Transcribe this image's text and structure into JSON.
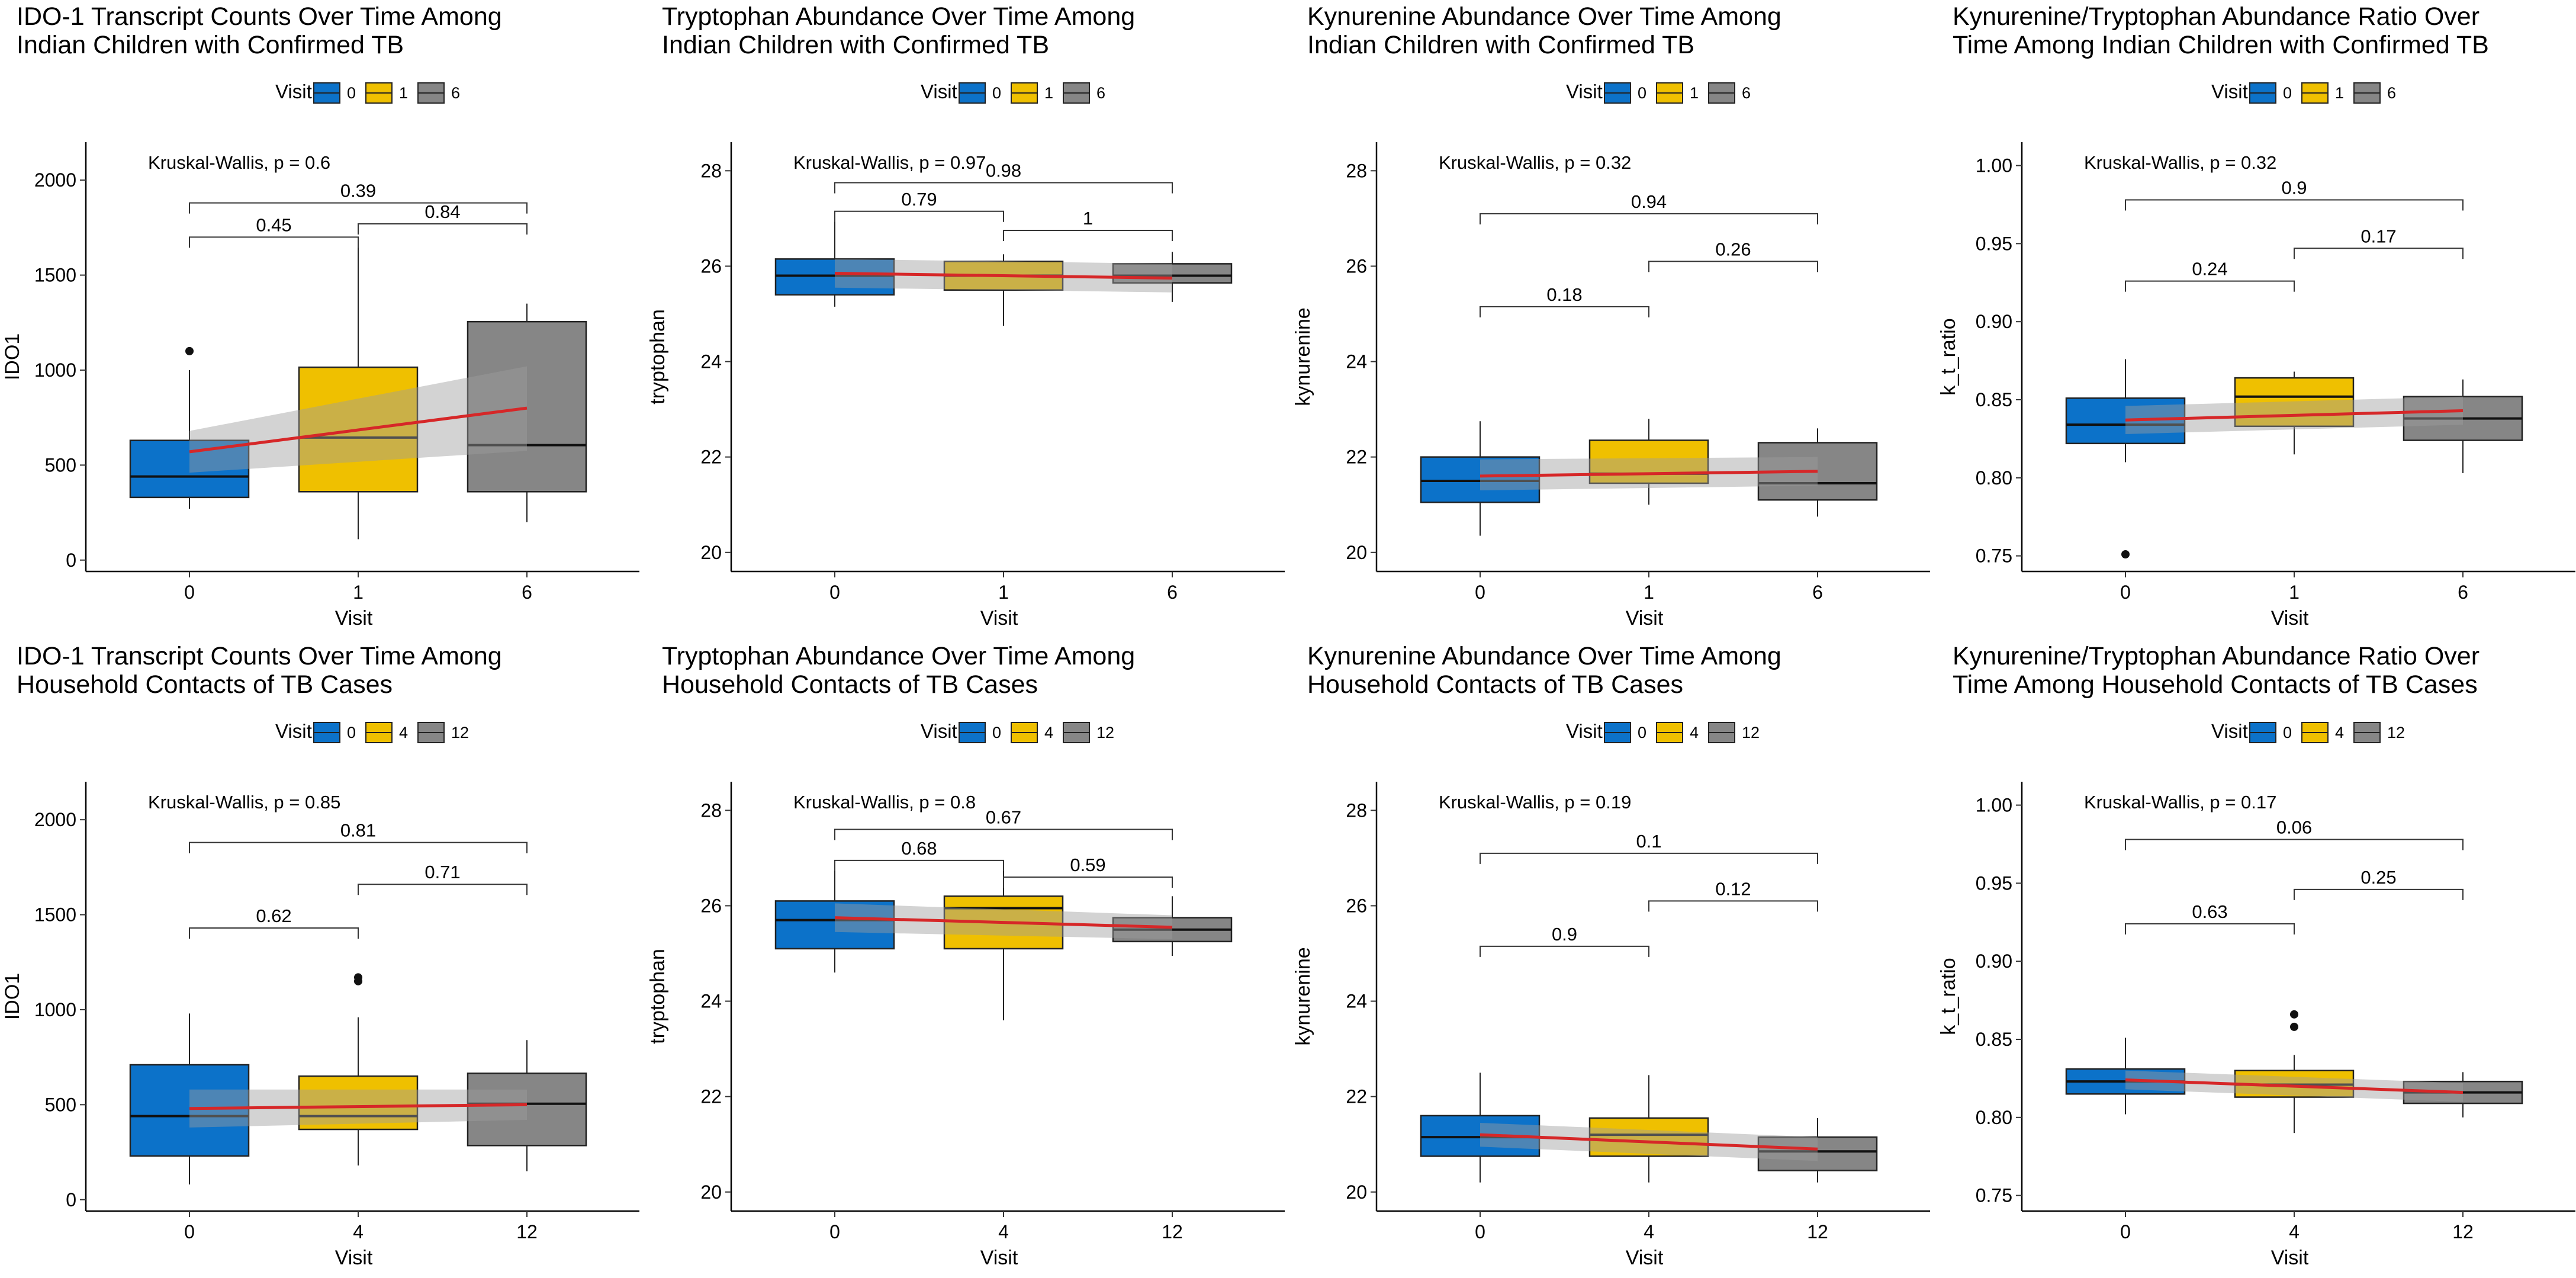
{
  "chart_data": [
    {
      "type": "box",
      "title_lines": [
        "IDO-1 Transcript Counts Over Time Among",
        "Indian Children  with Confirmed TB"
      ],
      "ylabel": "IDO1",
      "xlabel": "Visit",
      "legend_title": "Visit",
      "categories": [
        "0",
        "1",
        "6"
      ],
      "ylim": [
        -60,
        2200
      ],
      "yticks": [
        0,
        500,
        1000,
        1500,
        2000
      ],
      "boxes": [
        {
          "category": "0",
          "q1": 330,
          "median": 440,
          "q3": 630,
          "whisker_low": 270,
          "whisker_high": 1000,
          "outliers": [
            1100
          ]
        },
        {
          "category": "1",
          "q1": 360,
          "median": 645,
          "q3": 1015,
          "whisker_low": 110,
          "whisker_high": 1700,
          "outliers": []
        },
        {
          "category": "6",
          "q1": 360,
          "median": 605,
          "q3": 1255,
          "whisker_low": 200,
          "whisker_high": 1350,
          "outliers": []
        }
      ],
      "trend": {
        "start": 570,
        "end": 800,
        "band_start": [
          460,
          680
        ],
        "band_end": [
          575,
          1020
        ]
      },
      "kruskal_wallis": "Kruskal-Wallis, p = 0.6",
      "comparisons": [
        {
          "from": 0,
          "to": 1,
          "y": 1700,
          "label": "0.45"
        },
        {
          "from": 1,
          "to": 2,
          "y": 1770,
          "label": "0.84"
        },
        {
          "from": 0,
          "to": 2,
          "y": 1880,
          "label": "0.39"
        }
      ]
    },
    {
      "type": "box",
      "title_lines": [
        "Tryptophan Abundance Over Time Among",
        "Indian Children with Confirmed TB"
      ],
      "ylabel": "tryptophan",
      "xlabel": "Visit",
      "legend_title": "Visit",
      "categories": [
        "0",
        "1",
        "6"
      ],
      "ylim": [
        19.6,
        28.6
      ],
      "yticks": [
        20,
        22,
        24,
        26,
        28
      ],
      "boxes": [
        {
          "category": "0",
          "q1": 25.4,
          "median": 25.8,
          "q3": 26.15,
          "whisker_low": 25.15,
          "whisker_high": 27.1,
          "outliers": []
        },
        {
          "category": "1",
          "q1": 25.5,
          "median": 25.8,
          "q3": 26.1,
          "whisker_low": 24.75,
          "whisker_high": 26.25,
          "outliers": []
        },
        {
          "category": "6",
          "q1": 25.65,
          "median": 25.8,
          "q3": 26.05,
          "whisker_low": 25.25,
          "whisker_high": 26.3,
          "outliers": []
        }
      ],
      "trend": {
        "start": 25.85,
        "end": 25.75,
        "band_start": [
          25.55,
          26.15
        ],
        "band_end": [
          25.45,
          26.05
        ]
      },
      "kruskal_wallis": "Kruskal-Wallis, p = 0.97",
      "comparisons": [
        {
          "from": 0,
          "to": 1,
          "y": 27.15,
          "label": "0.79"
        },
        {
          "from": 1,
          "to": 2,
          "y": 26.75,
          "label": "1"
        },
        {
          "from": 0,
          "to": 2,
          "y": 27.75,
          "label": "0.98"
        }
      ]
    },
    {
      "type": "box",
      "title_lines": [
        "Kynurenine Abundance Over Time Among",
        "Indian Children  with Confirmed TB"
      ],
      "ylabel": "kynurenine",
      "xlabel": "Visit",
      "legend_title": "Visit",
      "categories": [
        "0",
        "1",
        "6"
      ],
      "ylim": [
        19.6,
        28.6
      ],
      "yticks": [
        20,
        22,
        24,
        26,
        28
      ],
      "boxes": [
        {
          "category": "0",
          "q1": 21.05,
          "median": 21.5,
          "q3": 22.0,
          "whisker_low": 20.35,
          "whisker_high": 22.75,
          "outliers": []
        },
        {
          "category": "1",
          "q1": 21.45,
          "median": 21.65,
          "q3": 22.35,
          "whisker_low": 21.0,
          "whisker_high": 22.8,
          "outliers": []
        },
        {
          "category": "6",
          "q1": 21.1,
          "median": 21.45,
          "q3": 22.3,
          "whisker_low": 20.75,
          "whisker_high": 22.6,
          "outliers": []
        }
      ],
      "trend": {
        "start": 21.6,
        "end": 21.7,
        "band_start": [
          21.3,
          21.95
        ],
        "band_end": [
          21.4,
          22.0
        ]
      },
      "kruskal_wallis": "Kruskal-Wallis, p = 0.32",
      "comparisons": [
        {
          "from": 0,
          "to": 1,
          "y": 25.15,
          "label": "0.18"
        },
        {
          "from": 1,
          "to": 2,
          "y": 26.1,
          "label": "0.26"
        },
        {
          "from": 0,
          "to": 2,
          "y": 27.1,
          "label": "0.94"
        }
      ]
    },
    {
      "type": "box",
      "title_lines": [
        "Kynurenine/Tryptophan Abundance Ratio Over",
        "Time Among Indian Children with Confirmed TB"
      ],
      "ylabel": "k_t_ratio",
      "xlabel": "Visit",
      "legend_title": "Visit",
      "categories": [
        "0",
        "1",
        "6"
      ],
      "ylim": [
        0.74,
        1.015
      ],
      "yticks": [
        0.75,
        0.8,
        0.85,
        0.9,
        0.95,
        1.0
      ],
      "ytick_labels": [
        "0.75",
        "0.80",
        "0.85",
        "0.90",
        "0.95",
        "1.00"
      ],
      "boxes": [
        {
          "category": "0",
          "q1": 0.822,
          "median": 0.834,
          "q3": 0.851,
          "whisker_low": 0.81,
          "whisker_high": 0.876,
          "outliers": [
            0.751
          ]
        },
        {
          "category": "1",
          "q1": 0.833,
          "median": 0.852,
          "q3": 0.864,
          "whisker_low": 0.815,
          "whisker_high": 0.868,
          "outliers": []
        },
        {
          "category": "6",
          "q1": 0.824,
          "median": 0.838,
          "q3": 0.852,
          "whisker_low": 0.803,
          "whisker_high": 0.863,
          "outliers": []
        }
      ],
      "trend": {
        "start": 0.837,
        "end": 0.843,
        "band_start": [
          0.828,
          0.846
        ],
        "band_end": [
          0.834,
          0.852
        ]
      },
      "kruskal_wallis": "Kruskal-Wallis, p = 0.32",
      "comparisons": [
        {
          "from": 0,
          "to": 1,
          "y": 0.926,
          "label": "0.24"
        },
        {
          "from": 1,
          "to": 2,
          "y": 0.947,
          "label": "0.17"
        },
        {
          "from": 0,
          "to": 2,
          "y": 0.978,
          "label": "0.9"
        }
      ]
    },
    {
      "type": "box",
      "title_lines": [
        "IDO-1 Transcript Counts Over Time Among",
        "Household Contacts of TB Cases"
      ],
      "ylabel": "IDO1",
      "xlabel": "Visit",
      "legend_title": "Visit",
      "categories": [
        "0",
        "4",
        "12"
      ],
      "ylim": [
        -60,
        2200
      ],
      "yticks": [
        0,
        500,
        1000,
        1500,
        2000
      ],
      "boxes": [
        {
          "category": "0",
          "q1": 230,
          "median": 440,
          "q3": 710,
          "whisker_low": 80,
          "whisker_high": 980,
          "outliers": []
        },
        {
          "category": "4",
          "q1": 370,
          "median": 440,
          "q3": 650,
          "whisker_low": 180,
          "whisker_high": 960,
          "outliers": [
            1150,
            1170
          ]
        },
        {
          "category": "12",
          "q1": 285,
          "median": 505,
          "q3": 665,
          "whisker_low": 150,
          "whisker_high": 840,
          "outliers": []
        }
      ],
      "trend": {
        "start": 480,
        "end": 500,
        "band_start": [
          380,
          580
        ],
        "band_end": [
          420,
          580
        ]
      },
      "kruskal_wallis": "Kruskal-Wallis, p = 0.85",
      "comparisons": [
        {
          "from": 0,
          "to": 1,
          "y": 1430,
          "label": "0.62"
        },
        {
          "from": 1,
          "to": 2,
          "y": 1660,
          "label": "0.71"
        },
        {
          "from": 0,
          "to": 2,
          "y": 1880,
          "label": "0.81"
        }
      ]
    },
    {
      "type": "box",
      "title_lines": [
        "Tryptophan Abundance Over Time Among",
        "Household Contacts of TB Cases"
      ],
      "ylabel": "tryptophan",
      "xlabel": "Visit",
      "legend_title": "Visit",
      "categories": [
        "0",
        "4",
        "12"
      ],
      "ylim": [
        19.6,
        28.6
      ],
      "yticks": [
        20,
        22,
        24,
        26,
        28
      ],
      "boxes": [
        {
          "category": "0",
          "q1": 25.1,
          "median": 25.7,
          "q3": 26.1,
          "whisker_low": 24.6,
          "whisker_high": 26.95,
          "outliers": []
        },
        {
          "category": "4",
          "q1": 25.1,
          "median": 25.95,
          "q3": 26.2,
          "whisker_low": 23.6,
          "whisker_high": 26.95,
          "outliers": []
        },
        {
          "category": "12",
          "q1": 25.25,
          "median": 25.5,
          "q3": 25.75,
          "whisker_low": 24.95,
          "whisker_high": 26.2,
          "outliers": []
        }
      ],
      "trend": {
        "start": 25.75,
        "end": 25.55,
        "band_start": [
          25.45,
          26.05
        ],
        "band_end": [
          25.3,
          25.8
        ]
      },
      "kruskal_wallis": "Kruskal-Wallis, p = 0.8",
      "comparisons": [
        {
          "from": 0,
          "to": 1,
          "y": 26.95,
          "label": "0.68"
        },
        {
          "from": 1,
          "to": 2,
          "y": 26.6,
          "label": "0.59"
        },
        {
          "from": 0,
          "to": 2,
          "y": 27.6,
          "label": "0.67"
        }
      ]
    },
    {
      "type": "box",
      "title_lines": [
        "Kynurenine Abundance Over Time Among",
        "Household Contacts of TB Cases"
      ],
      "ylabel": "kynurenine",
      "xlabel": "Visit",
      "legend_title": "Visit",
      "categories": [
        "0",
        "4",
        "12"
      ],
      "ylim": [
        19.6,
        28.6
      ],
      "yticks": [
        20,
        22,
        24,
        26,
        28
      ],
      "boxes": [
        {
          "category": "0",
          "q1": 20.75,
          "median": 21.15,
          "q3": 21.6,
          "whisker_low": 20.2,
          "whisker_high": 22.5,
          "outliers": []
        },
        {
          "category": "4",
          "q1": 20.75,
          "median": 21.2,
          "q3": 21.55,
          "whisker_low": 20.2,
          "whisker_high": 22.45,
          "outliers": []
        },
        {
          "category": "12",
          "q1": 20.45,
          "median": 20.85,
          "q3": 21.15,
          "whisker_low": 20.2,
          "whisker_high": 21.55,
          "outliers": []
        }
      ],
      "trend": {
        "start": 21.2,
        "end": 20.9,
        "band_start": [
          20.95,
          21.45
        ],
        "band_end": [
          20.65,
          21.15
        ]
      },
      "kruskal_wallis": "Kruskal-Wallis, p = 0.19",
      "comparisons": [
        {
          "from": 0,
          "to": 1,
          "y": 25.15,
          "label": "0.9"
        },
        {
          "from": 1,
          "to": 2,
          "y": 26.1,
          "label": "0.12"
        },
        {
          "from": 0,
          "to": 2,
          "y": 27.1,
          "label": "0.1"
        }
      ]
    },
    {
      "type": "box",
      "title_lines": [
        "Kynurenine/Tryptophan Abundance Ratio Over",
        "Time Among Household Contacts of TB Cases"
      ],
      "ylabel": "k_t_ratio",
      "xlabel": "Visit",
      "legend_title": "Visit",
      "categories": [
        "0",
        "4",
        "12"
      ],
      "ylim": [
        0.74,
        1.015
      ],
      "yticks": [
        0.75,
        0.8,
        0.85,
        0.9,
        0.95,
        1.0
      ],
      "ytick_labels": [
        "0.75",
        "0.80",
        "0.85",
        "0.90",
        "0.95",
        "1.00"
      ],
      "boxes": [
        {
          "category": "0",
          "q1": 0.815,
          "median": 0.823,
          "q3": 0.831,
          "whisker_low": 0.802,
          "whisker_high": 0.851,
          "outliers": []
        },
        {
          "category": "4",
          "q1": 0.813,
          "median": 0.821,
          "q3": 0.83,
          "whisker_low": 0.79,
          "whisker_high": 0.84,
          "outliers": [
            0.858,
            0.866
          ]
        },
        {
          "category": "12",
          "q1": 0.809,
          "median": 0.816,
          "q3": 0.823,
          "whisker_low": 0.8,
          "whisker_high": 0.829,
          "outliers": []
        }
      ],
      "trend": {
        "start": 0.824,
        "end": 0.816,
        "band_start": [
          0.818,
          0.83
        ],
        "band_end": [
          0.81,
          0.822
        ]
      },
      "kruskal_wallis": "Kruskal-Wallis, p = 0.17",
      "comparisons": [
        {
          "from": 0,
          "to": 1,
          "y": 0.924,
          "label": "0.63"
        },
        {
          "from": 1,
          "to": 2,
          "y": 0.946,
          "label": "0.25"
        },
        {
          "from": 0,
          "to": 2,
          "y": 0.978,
          "label": "0.06"
        }
      ]
    }
  ],
  "colors": {
    "box_fills": [
      "#0c72c9",
      "#efc000",
      "#868686"
    ],
    "trend_line": "#d62728",
    "trend_band": "#9e9e9e"
  }
}
